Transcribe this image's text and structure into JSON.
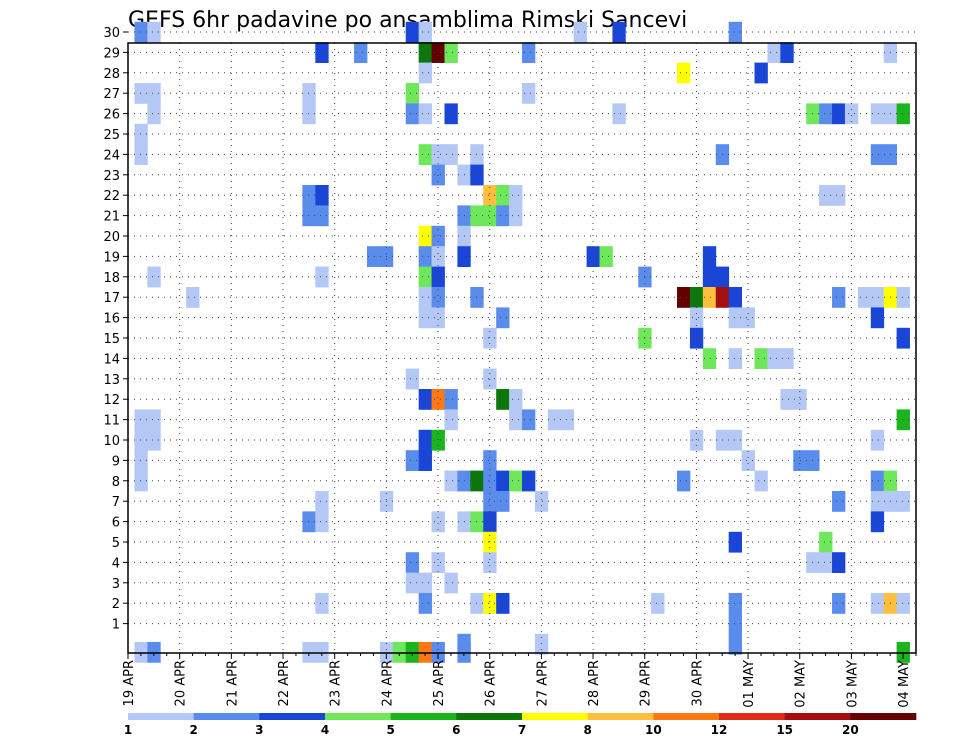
{
  "chart_data": {
    "type": "heatmap",
    "title": "GEFS 6hr padavine po ansamblima Rimski Sancevi",
    "y_ticks": [
      "1",
      "2",
      "3",
      "4",
      "5",
      "6",
      "7",
      "8",
      "9",
      "10",
      "11",
      "12",
      "13",
      "14",
      "15",
      "16",
      "17",
      "18",
      "19",
      "20",
      "21",
      "22",
      "23",
      "24",
      "25",
      "26",
      "27",
      "28",
      "29",
      "30"
    ],
    "x_ticks": [
      "19 APR",
      "20 APR",
      "21 APR",
      "22 APR",
      "23 APR",
      "24 APR",
      "25 APR",
      "26 APR",
      "27 APR",
      "28 APR",
      "29 APR",
      "30 APR",
      "01 MAY",
      "02 MAY",
      "03 MAY",
      "04 MAY"
    ],
    "x_range": [
      0,
      61
    ],
    "y_range": [
      0,
      30
    ],
    "grid": "dotted",
    "legend_labels": [
      "1",
      "2",
      "3",
      "4",
      "5",
      "6",
      "7",
      "8",
      "10",
      "12",
      "15",
      "20"
    ],
    "levels": [
      1,
      2,
      3,
      4,
      5,
      6,
      7,
      8,
      10,
      12,
      15,
      20
    ],
    "colors": [
      "#b4c8f5",
      "#5a8cec",
      "#1a46d8",
      "#6ee85a",
      "#1cb41c",
      "#0c780c",
      "#ffff00",
      "#ffbe3c",
      "#ff7814",
      "#e02d14",
      "#a50f0f",
      "#640000"
    ],
    "cells": [
      [
        1,
        30,
        1
      ],
      [
        2,
        30,
        0
      ],
      [
        22,
        30,
        2
      ],
      [
        23,
        30,
        0
      ],
      [
        35,
        30,
        0
      ],
      [
        38,
        30,
        2
      ],
      [
        47,
        30,
        1
      ],
      [
        15,
        29,
        2
      ],
      [
        18,
        29,
        1
      ],
      [
        23,
        29,
        5
      ],
      [
        24,
        29,
        11
      ],
      [
        25,
        29,
        3
      ],
      [
        31,
        29,
        1
      ],
      [
        50,
        29,
        0
      ],
      [
        51,
        29,
        2
      ],
      [
        59,
        29,
        0
      ],
      [
        23,
        28,
        0
      ],
      [
        43,
        28,
        6
      ],
      [
        49,
        28,
        2
      ],
      [
        1,
        27,
        0
      ],
      [
        2,
        27,
        0
      ],
      [
        14,
        27,
        0
      ],
      [
        22,
        27,
        3
      ],
      [
        31,
        27,
        0
      ],
      [
        2,
        26,
        0
      ],
      [
        14,
        26,
        0
      ],
      [
        22,
        26,
        1
      ],
      [
        23,
        26,
        0
      ],
      [
        25,
        26,
        2
      ],
      [
        38,
        26,
        0
      ],
      [
        53,
        26,
        3
      ],
      [
        54,
        26,
        1
      ],
      [
        55,
        26,
        2
      ],
      [
        56,
        26,
        0
      ],
      [
        58,
        26,
        0
      ],
      [
        59,
        26,
        0
      ],
      [
        60,
        26,
        4
      ],
      [
        1,
        25,
        0
      ],
      [
        1,
        24,
        0
      ],
      [
        23,
        24,
        3
      ],
      [
        24,
        24,
        0
      ],
      [
        25,
        24,
        0
      ],
      [
        27,
        24,
        0
      ],
      [
        46,
        24,
        1
      ],
      [
        58,
        24,
        1
      ],
      [
        59,
        24,
        1
      ],
      [
        24,
        23,
        1
      ],
      [
        26,
        23,
        0
      ],
      [
        27,
        23,
        2
      ],
      [
        14,
        22,
        1
      ],
      [
        15,
        22,
        2
      ],
      [
        28,
        22,
        7
      ],
      [
        29,
        22,
        3
      ],
      [
        30,
        22,
        0
      ],
      [
        54,
        22,
        0
      ],
      [
        55,
        22,
        0
      ],
      [
        14,
        21,
        1
      ],
      [
        15,
        21,
        1
      ],
      [
        26,
        21,
        1
      ],
      [
        27,
        21,
        3
      ],
      [
        28,
        21,
        3
      ],
      [
        29,
        21,
        1
      ],
      [
        30,
        21,
        0
      ],
      [
        23,
        20,
        6
      ],
      [
        24,
        20,
        1
      ],
      [
        26,
        20,
        0
      ],
      [
        19,
        19,
        1
      ],
      [
        20,
        19,
        1
      ],
      [
        23,
        19,
        1
      ],
      [
        24,
        19,
        0
      ],
      [
        26,
        19,
        2
      ],
      [
        36,
        19,
        2
      ],
      [
        37,
        19,
        3
      ],
      [
        45,
        19,
        2
      ],
      [
        2,
        18,
        0
      ],
      [
        15,
        18,
        0
      ],
      [
        23,
        18,
        3
      ],
      [
        24,
        18,
        2
      ],
      [
        40,
        18,
        1
      ],
      [
        45,
        18,
        2
      ],
      [
        46,
        18,
        2
      ],
      [
        5,
        17,
        0
      ],
      [
        23,
        17,
        0
      ],
      [
        24,
        17,
        1
      ],
      [
        27,
        17,
        1
      ],
      [
        43,
        17,
        11
      ],
      [
        44,
        17,
        5
      ],
      [
        45,
        17,
        7
      ],
      [
        46,
        17,
        10
      ],
      [
        47,
        17,
        2
      ],
      [
        55,
        17,
        1
      ],
      [
        57,
        17,
        0
      ],
      [
        58,
        17,
        0
      ],
      [
        59,
        17,
        6
      ],
      [
        60,
        17,
        0
      ],
      [
        23,
        16,
        0
      ],
      [
        24,
        16,
        0
      ],
      [
        29,
        16,
        1
      ],
      [
        44,
        16,
        0
      ],
      [
        47,
        16,
        0
      ],
      [
        48,
        16,
        0
      ],
      [
        58,
        16,
        2
      ],
      [
        28,
        15,
        0
      ],
      [
        40,
        15,
        3
      ],
      [
        44,
        15,
        2
      ],
      [
        60,
        15,
        2
      ],
      [
        45,
        14,
        3
      ],
      [
        47,
        14,
        0
      ],
      [
        49,
        14,
        3
      ],
      [
        50,
        14,
        0
      ],
      [
        51,
        14,
        0
      ],
      [
        22,
        13,
        0
      ],
      [
        28,
        13,
        0
      ],
      [
        23,
        12,
        2
      ],
      [
        24,
        12,
        8
      ],
      [
        25,
        12,
        1
      ],
      [
        29,
        12,
        5
      ],
      [
        30,
        12,
        0
      ],
      [
        51,
        12,
        0
      ],
      [
        52,
        12,
        0
      ],
      [
        1,
        11,
        0
      ],
      [
        2,
        11,
        0
      ],
      [
        25,
        11,
        0
      ],
      [
        30,
        11,
        0
      ],
      [
        31,
        11,
        1
      ],
      [
        33,
        11,
        0
      ],
      [
        34,
        11,
        0
      ],
      [
        60,
        11,
        4
      ],
      [
        1,
        10,
        0
      ],
      [
        2,
        10,
        0
      ],
      [
        23,
        10,
        2
      ],
      [
        24,
        10,
        4
      ],
      [
        44,
        10,
        0
      ],
      [
        46,
        10,
        0
      ],
      [
        47,
        10,
        0
      ],
      [
        58,
        10,
        0
      ],
      [
        1,
        9,
        0
      ],
      [
        22,
        9,
        1
      ],
      [
        23,
        9,
        2
      ],
      [
        28,
        9,
        1
      ],
      [
        48,
        9,
        0
      ],
      [
        52,
        9,
        1
      ],
      [
        53,
        9,
        1
      ],
      [
        1,
        8,
        0
      ],
      [
        25,
        8,
        0
      ],
      [
        26,
        8,
        1
      ],
      [
        27,
        8,
        5
      ],
      [
        28,
        8,
        1
      ],
      [
        29,
        8,
        2
      ],
      [
        30,
        8,
        3
      ],
      [
        31,
        8,
        2
      ],
      [
        43,
        8,
        1
      ],
      [
        49,
        8,
        0
      ],
      [
        58,
        8,
        1
      ],
      [
        59,
        8,
        3
      ],
      [
        15,
        7,
        0
      ],
      [
        20,
        7,
        0
      ],
      [
        28,
        7,
        1
      ],
      [
        29,
        7,
        1
      ],
      [
        32,
        7,
        0
      ],
      [
        55,
        7,
        1
      ],
      [
        58,
        7,
        0
      ],
      [
        59,
        7,
        0
      ],
      [
        60,
        7,
        0
      ],
      [
        14,
        6,
        1
      ],
      [
        15,
        6,
        0
      ],
      [
        24,
        6,
        0
      ],
      [
        26,
        6,
        0
      ],
      [
        27,
        6,
        3
      ],
      [
        28,
        6,
        2
      ],
      [
        58,
        6,
        2
      ],
      [
        28,
        5,
        6
      ],
      [
        47,
        5,
        2
      ],
      [
        54,
        5,
        3
      ],
      [
        22,
        4,
        1
      ],
      [
        24,
        4,
        0
      ],
      [
        28,
        4,
        0
      ],
      [
        53,
        4,
        0
      ],
      [
        54,
        4,
        0
      ],
      [
        55,
        4,
        2
      ],
      [
        22,
        3,
        0
      ],
      [
        23,
        3,
        0
      ],
      [
        25,
        3,
        0
      ],
      [
        15,
        2,
        0
      ],
      [
        23,
        2,
        1
      ],
      [
        27,
        2,
        0
      ],
      [
        28,
        2,
        6
      ],
      [
        29,
        2,
        2
      ],
      [
        41,
        2,
        0
      ],
      [
        47,
        2,
        1
      ],
      [
        55,
        2,
        1
      ],
      [
        58,
        2,
        0
      ],
      [
        59,
        2,
        7
      ],
      [
        60,
        2,
        0
      ],
      [
        47,
        1,
        1
      ],
      [
        26,
        0,
        1
      ],
      [
        32,
        0,
        0
      ],
      [
        47,
        0,
        1
      ],
      [
        1,
        -0.4,
        0
      ],
      [
        2,
        -0.4,
        1
      ],
      [
        14,
        -0.4,
        0
      ],
      [
        15,
        -0.4,
        0
      ],
      [
        20,
        -0.4,
        0
      ],
      [
        21,
        -0.4,
        3
      ],
      [
        22,
        -0.4,
        4
      ],
      [
        23,
        -0.4,
        8
      ],
      [
        24,
        -0.4,
        1
      ],
      [
        26,
        -0.4,
        1
      ],
      [
        60,
        -0.4,
        4
      ]
    ]
  }
}
